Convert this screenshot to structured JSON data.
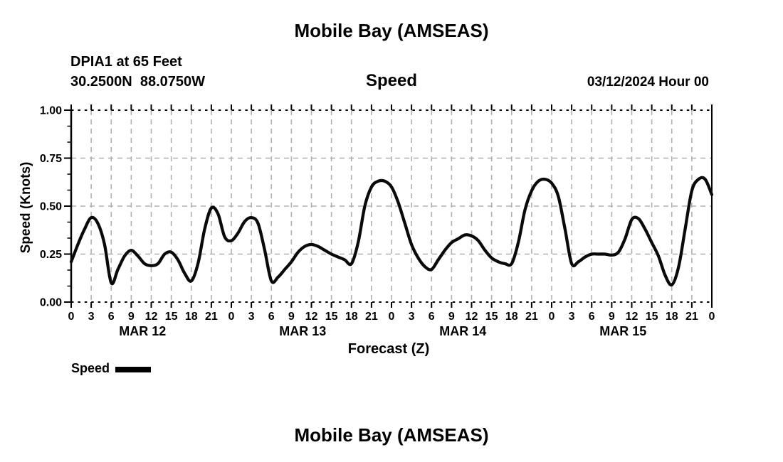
{
  "footer": {
    "next_chart_title": "Mobile Bay (AMSEAS)"
  },
  "colors": {
    "line": "#0a0a0a",
    "grid": "#b0b0b0",
    "axis": "#000000",
    "text": "#000000",
    "background": "#ffffff"
  },
  "chart_data": {
    "type": "line",
    "title": "Mobile Bay (AMSEAS)",
    "subtitle": "Speed",
    "station": "DPIA1 at 65 Feet",
    "location": "30.2500N  88.0750W",
    "forecast_run": "03/12/2024 Hour 00",
    "xlabel": "Forecast (Z)",
    "ylabel": "Speed (Knots)",
    "ylim": [
      0.0,
      1.0
    ],
    "yticks": [
      0.0,
      0.25,
      0.5,
      0.75,
      1.0
    ],
    "ytick_labels": [
      "0.00",
      "0.25",
      "0.50",
      "0.75",
      "1.00"
    ],
    "x_hours_start": 0,
    "x_hours_end": 96,
    "x_tick_step_hours": 3,
    "x_tick_labels": [
      "0",
      "3",
      "6",
      "9",
      "12",
      "15",
      "18",
      "21",
      "0",
      "3",
      "6",
      "9",
      "12",
      "15",
      "18",
      "21",
      "0",
      "3",
      "6",
      "9",
      "12",
      "15",
      "18",
      "21",
      "0",
      "3",
      "6",
      "9",
      "12",
      "15",
      "18",
      "21",
      "0"
    ],
    "day_labels": [
      "MAR 12",
      "MAR 13",
      "MAR 14",
      "MAR 15"
    ],
    "grid": true,
    "legend_position": "bottom-left",
    "series": [
      {
        "name": "Speed",
        "color": "#0a0a0a",
        "x_step_hours": 1,
        "values": [
          0.21,
          0.3,
          0.38,
          0.44,
          0.41,
          0.3,
          0.1,
          0.17,
          0.24,
          0.27,
          0.24,
          0.2,
          0.19,
          0.2,
          0.25,
          0.26,
          0.22,
          0.15,
          0.11,
          0.2,
          0.38,
          0.49,
          0.46,
          0.34,
          0.32,
          0.36,
          0.42,
          0.44,
          0.41,
          0.27,
          0.11,
          0.13,
          0.17,
          0.21,
          0.26,
          0.29,
          0.3,
          0.29,
          0.27,
          0.25,
          0.235,
          0.22,
          0.2,
          0.31,
          0.5,
          0.6,
          0.63,
          0.63,
          0.6,
          0.52,
          0.41,
          0.3,
          0.23,
          0.185,
          0.17,
          0.22,
          0.27,
          0.31,
          0.33,
          0.35,
          0.345,
          0.32,
          0.27,
          0.23,
          0.21,
          0.2,
          0.2,
          0.31,
          0.48,
          0.58,
          0.63,
          0.64,
          0.62,
          0.55,
          0.38,
          0.2,
          0.21,
          0.235,
          0.25,
          0.25,
          0.25,
          0.245,
          0.26,
          0.33,
          0.43,
          0.435,
          0.38,
          0.31,
          0.24,
          0.14,
          0.09,
          0.18,
          0.38,
          0.58,
          0.64,
          0.64,
          0.56
        ]
      }
    ]
  }
}
